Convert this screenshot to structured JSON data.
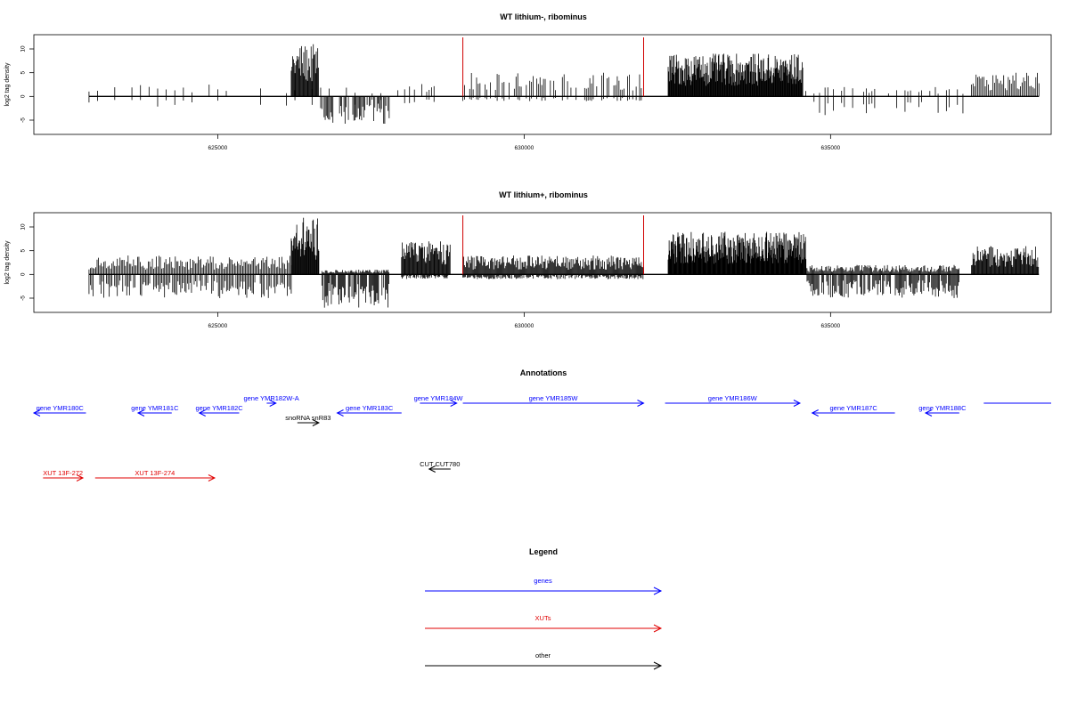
{
  "chart_data": [
    {
      "type": "bar",
      "title": "WT lithium-, ribominus",
      "ylabel": "log2 tag density",
      "xlim": [
        622000,
        638600
      ],
      "ylim": [
        -8,
        13
      ],
      "x_ticks": [
        625000,
        630000,
        635000
      ],
      "x_tick_labels": [
        "625000",
        "630000",
        "635000"
      ],
      "y_ticks": [
        -5,
        0,
        5,
        10
      ],
      "y_tick_labels": [
        "-5",
        "0",
        "5",
        "10"
      ],
      "markers": [
        {
          "x": 629000,
          "color": "#d00000"
        },
        {
          "x": 631950,
          "color": "#d00000"
        }
      ],
      "segments": [
        {
          "start": 622900,
          "end": 628000,
          "pos": 2.5,
          "neg": -2.5,
          "step": 140,
          "sparse": true
        },
        {
          "start": 626200,
          "end": 626650,
          "pos": 11,
          "neg": 0,
          "step": 12,
          "sparse": false
        },
        {
          "start": 626700,
          "end": 627800,
          "pos": 0,
          "neg": -6,
          "step": 18,
          "sparse": false
        },
        {
          "start": 628050,
          "end": 628800,
          "pos": 3.5,
          "neg": -1.5,
          "step": 40,
          "sparse": true
        },
        {
          "start": 629000,
          "end": 631950,
          "pos": 5,
          "neg": -1,
          "step": 28,
          "sparse": true
        },
        {
          "start": 632350,
          "end": 634550,
          "pos": 9,
          "neg": 0,
          "step": 9,
          "sparse": false
        },
        {
          "start": 634550,
          "end": 637200,
          "pos": 2,
          "neg": -4,
          "step": 45,
          "sparse": true
        },
        {
          "start": 637300,
          "end": 638400,
          "pos": 5,
          "neg": 0,
          "step": 25,
          "sparse": false
        }
      ]
    },
    {
      "type": "bar",
      "title": "WT lithium+, ribominus",
      "ylabel": "log2 tag density",
      "xlim": [
        622000,
        638600
      ],
      "ylim": [
        -8,
        13
      ],
      "x_ticks": [
        625000,
        630000,
        635000
      ],
      "x_tick_labels": [
        "625000",
        "630000",
        "635000"
      ],
      "y_ticks": [
        -5,
        0,
        5,
        10
      ],
      "y_tick_labels": [
        "-5",
        "0",
        "5",
        "10"
      ],
      "markers": [
        {
          "x": 629000,
          "color": "#d00000"
        },
        {
          "x": 631950,
          "color": "#d00000"
        }
      ],
      "segments": [
        {
          "start": 622900,
          "end": 626200,
          "pos": 4,
          "neg": -5,
          "step": 22,
          "sparse": false
        },
        {
          "start": 626200,
          "end": 626650,
          "pos": 12,
          "neg": 0,
          "step": 10,
          "sparse": false
        },
        {
          "start": 626700,
          "end": 627800,
          "pos": 1,
          "neg": -7,
          "step": 14,
          "sparse": false
        },
        {
          "start": 628000,
          "end": 628800,
          "pos": 7,
          "neg": -1,
          "step": 12,
          "sparse": false
        },
        {
          "start": 629000,
          "end": 631950,
          "pos": 4,
          "neg": -1,
          "step": 14,
          "sparse": false
        },
        {
          "start": 632350,
          "end": 634600,
          "pos": 9,
          "neg": 0,
          "step": 8,
          "sparse": false
        },
        {
          "start": 634600,
          "end": 637100,
          "pos": 2,
          "neg": -5,
          "step": 16,
          "sparse": false
        },
        {
          "start": 637300,
          "end": 638400,
          "pos": 6,
          "neg": 0,
          "step": 12,
          "sparse": false
        }
      ]
    }
  ],
  "annotations": {
    "title": "Annotations",
    "features": [
      {
        "label": "gene YMR180C",
        "start": 622000,
        "end": 622850,
        "strand": "-",
        "color": "#0000ff",
        "row": 1
      },
      {
        "label": "gene YMR181C",
        "start": 623700,
        "end": 624250,
        "strand": "-",
        "color": "#0000ff",
        "row": 1
      },
      {
        "label": "gene YMR182C",
        "start": 624700,
        "end": 625350,
        "strand": "-",
        "color": "#0000ff",
        "row": 1
      },
      {
        "label": "gene YMR182W-A",
        "start": 625800,
        "end": 625950,
        "strand": "+",
        "color": "#0000ff",
        "row": 0
      },
      {
        "label": "gene YMR183C",
        "start": 626950,
        "end": 628000,
        "strand": "-",
        "color": "#0000ff",
        "row": 1
      },
      {
        "label": "gene YMR184W",
        "start": 628300,
        "end": 628900,
        "strand": "+",
        "color": "#0000ff",
        "row": 0
      },
      {
        "label": "gene YMR185W",
        "start": 629000,
        "end": 631950,
        "strand": "+",
        "color": "#0000ff",
        "row": 0
      },
      {
        "label": "gene YMR186W",
        "start": 632300,
        "end": 634500,
        "strand": "+",
        "color": "#0000ff",
        "row": 0
      },
      {
        "label": "gene YMR187C",
        "start": 634700,
        "end": 636050,
        "strand": "-",
        "color": "#0000ff",
        "row": 1
      },
      {
        "label": "gene YMR188C",
        "start": 636550,
        "end": 637100,
        "strand": "-",
        "color": "#0000ff",
        "row": 1
      },
      {
        "label": "",
        "start": 637500,
        "end": 638600,
        "strand": "none",
        "color": "#0000ff",
        "row": 0
      },
      {
        "label": "snoRNA snR83",
        "start": 626300,
        "end": 626650,
        "strand": "+",
        "color": "#000000",
        "row": 2
      },
      {
        "label": "CUT CUT780",
        "start": 628450,
        "end": 628800,
        "strand": "-",
        "color": "#000000",
        "row": 3
      },
      {
        "label": "XUT 13F-272",
        "start": 622150,
        "end": 622800,
        "strand": "+",
        "color": "#e00000",
        "row": 4
      },
      {
        "label": "XUT 13F-274",
        "start": 623000,
        "end": 624950,
        "strand": "+",
        "color": "#e00000",
        "row": 4
      }
    ]
  },
  "legend": {
    "title": "Legend",
    "items": [
      {
        "label": "genes",
        "color": "#0000ff"
      },
      {
        "label": "XUTs",
        "color": "#e00000"
      },
      {
        "label": "other",
        "color": "#000000"
      }
    ]
  }
}
